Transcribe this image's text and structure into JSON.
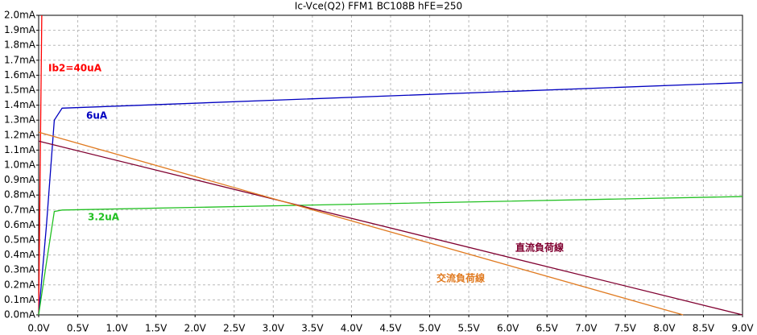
{
  "chart_data": {
    "type": "line",
    "title": "Ic-Vce(Q2) FFM1 BC108B hFE=250",
    "xlim": [
      0,
      9
    ],
    "ylim": [
      0,
      2
    ],
    "grid": true,
    "xticks": [
      {
        "value": 0,
        "label": "0.0V"
      },
      {
        "value": 0.5,
        "label": "0.5V"
      },
      {
        "value": 1,
        "label": "1.0V"
      },
      {
        "value": 1.5,
        "label": "1.5V"
      },
      {
        "value": 2,
        "label": "2.0V"
      },
      {
        "value": 2.5,
        "label": "2.5V"
      },
      {
        "value": 3,
        "label": "3.0V"
      },
      {
        "value": 3.5,
        "label": "3.5V"
      },
      {
        "value": 4,
        "label": "4.0V"
      },
      {
        "value": 4.5,
        "label": "4.5V"
      },
      {
        "value": 5,
        "label": "5.0V"
      },
      {
        "value": 5.5,
        "label": "5.5V"
      },
      {
        "value": 6,
        "label": "6.0V"
      },
      {
        "value": 6.5,
        "label": "6.5V"
      },
      {
        "value": 7,
        "label": "7.0V"
      },
      {
        "value": 7.5,
        "label": "7.5V"
      },
      {
        "value": 8,
        "label": "8.0V"
      },
      {
        "value": 8.5,
        "label": "8.5V"
      },
      {
        "value": 9,
        "label": "9.0V"
      }
    ],
    "yticks": [
      {
        "value": 0,
        "label": "0.0mA"
      },
      {
        "value": 0.1,
        "label": "0.1mA"
      },
      {
        "value": 0.2,
        "label": "0.2mA"
      },
      {
        "value": 0.3,
        "label": "0.3mA"
      },
      {
        "value": 0.4,
        "label": "0.4mA"
      },
      {
        "value": 0.5,
        "label": "0.5mA"
      },
      {
        "value": 0.6,
        "label": "0.6mA"
      },
      {
        "value": 0.7,
        "label": "0.7mA"
      },
      {
        "value": 0.8,
        "label": "0.8mA"
      },
      {
        "value": 0.9,
        "label": "0.9mA"
      },
      {
        "value": 1,
        "label": "1.0mA"
      },
      {
        "value": 1.1,
        "label": "1.1mA"
      },
      {
        "value": 1.2,
        "label": "1.2mA"
      },
      {
        "value": 1.3,
        "label": "1.3mA"
      },
      {
        "value": 1.4,
        "label": "1.4mA"
      },
      {
        "value": 1.5,
        "label": "1.5mA"
      },
      {
        "value": 1.6,
        "label": "1.6mA"
      },
      {
        "value": 1.7,
        "label": "1.7mA"
      },
      {
        "value": 1.8,
        "label": "1.8mA"
      },
      {
        "value": 1.9,
        "label": "1.9mA"
      },
      {
        "value": 2,
        "label": "2.0mA"
      }
    ],
    "series": [
      {
        "name": "Ib2=40uA",
        "color": "#ff0000",
        "x": [
          0,
          0.02,
          0.04
        ],
        "values": [
          0,
          1.0,
          2.0
        ]
      },
      {
        "name": "6uA",
        "color": "#0000c0",
        "x": [
          0,
          0.1,
          0.2,
          0.3,
          9
        ],
        "values": [
          0,
          0.6,
          1.3,
          1.38,
          1.55
        ]
      },
      {
        "name": "3.2uA",
        "color": "#22c022",
        "x": [
          0,
          0.1,
          0.2,
          0.3,
          9
        ],
        "values": [
          0,
          0.35,
          0.69,
          0.7,
          0.79
        ]
      },
      {
        "name": "直流負荷線",
        "color": "#800030",
        "x": [
          0,
          9
        ],
        "values": [
          1.16,
          0
        ]
      },
      {
        "name": "交流負荷線",
        "color": "#e07a20",
        "x": [
          0,
          8.24
        ],
        "values": [
          1.22,
          0
        ]
      }
    ]
  }
}
